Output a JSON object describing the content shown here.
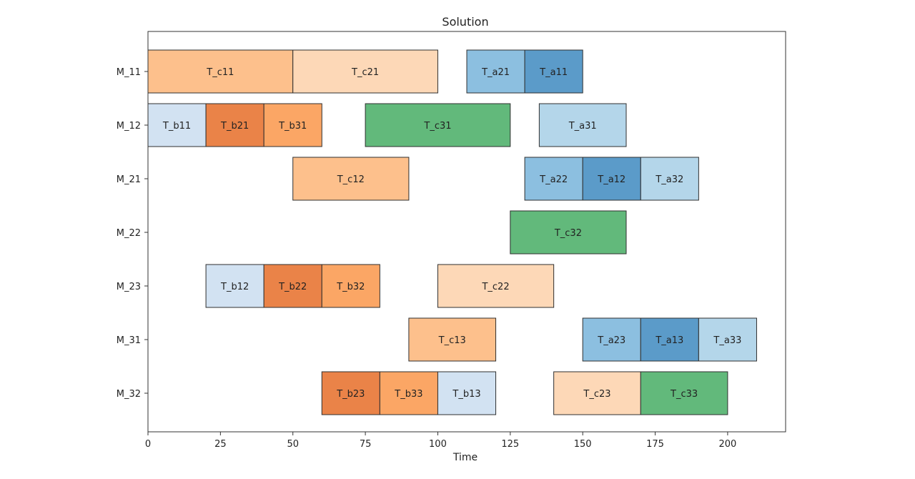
{
  "chart_data": {
    "type": "gantt",
    "title": "Solution",
    "xlabel": "Time",
    "ylabel": "",
    "xlim": [
      0,
      220
    ],
    "xticks": [
      0,
      25,
      50,
      75,
      100,
      125,
      150,
      175,
      200
    ],
    "machines": [
      "M_11",
      "M_12",
      "M_21",
      "M_22",
      "M_23",
      "M_31",
      "M_32"
    ],
    "colors": {
      "a1": "#5b9bc9",
      "a2": "#8cbfe0",
      "a3": "#b4d6ea",
      "b1": "#d2e2f2",
      "b2": "#ea8348",
      "b3": "#fba665",
      "c1": "#fdc08c",
      "c2": "#fdd8b7",
      "c3": "#62b97b"
    },
    "tasks": [
      {
        "label": "T_c11",
        "machine": "M_11",
        "start": 0,
        "end": 50,
        "color": "c1"
      },
      {
        "label": "T_c21",
        "machine": "M_11",
        "start": 50,
        "end": 100,
        "color": "c2"
      },
      {
        "label": "T_a21",
        "machine": "M_11",
        "start": 110,
        "end": 130,
        "color": "a2"
      },
      {
        "label": "T_a11",
        "machine": "M_11",
        "start": 130,
        "end": 150,
        "color": "a1"
      },
      {
        "label": "T_b11",
        "machine": "M_12",
        "start": 0,
        "end": 20,
        "color": "b1"
      },
      {
        "label": "T_b21",
        "machine": "M_12",
        "start": 20,
        "end": 40,
        "color": "b2"
      },
      {
        "label": "T_b31",
        "machine": "M_12",
        "start": 40,
        "end": 60,
        "color": "b3"
      },
      {
        "label": "T_c31",
        "machine": "M_12",
        "start": 75,
        "end": 125,
        "color": "c3"
      },
      {
        "label": "T_a31",
        "machine": "M_12",
        "start": 135,
        "end": 165,
        "color": "a3"
      },
      {
        "label": "T_c12",
        "machine": "M_21",
        "start": 50,
        "end": 90,
        "color": "c1"
      },
      {
        "label": "T_a22",
        "machine": "M_21",
        "start": 130,
        "end": 150,
        "color": "a2"
      },
      {
        "label": "T_a12",
        "machine": "M_21",
        "start": 150,
        "end": 170,
        "color": "a1"
      },
      {
        "label": "T_a32",
        "machine": "M_21",
        "start": 170,
        "end": 190,
        "color": "a3"
      },
      {
        "label": "T_c32",
        "machine": "M_22",
        "start": 125,
        "end": 165,
        "color": "c3"
      },
      {
        "label": "T_b12",
        "machine": "M_23",
        "start": 20,
        "end": 40,
        "color": "b1"
      },
      {
        "label": "T_b22",
        "machine": "M_23",
        "start": 40,
        "end": 60,
        "color": "b2"
      },
      {
        "label": "T_b32",
        "machine": "M_23",
        "start": 60,
        "end": 80,
        "color": "b3"
      },
      {
        "label": "T_c22",
        "machine": "M_23",
        "start": 100,
        "end": 140,
        "color": "c2"
      },
      {
        "label": "T_c13",
        "machine": "M_31",
        "start": 90,
        "end": 120,
        "color": "c1"
      },
      {
        "label": "T_a23",
        "machine": "M_31",
        "start": 150,
        "end": 170,
        "color": "a2"
      },
      {
        "label": "T_a13",
        "machine": "M_31",
        "start": 170,
        "end": 190,
        "color": "a1"
      },
      {
        "label": "T_a33",
        "machine": "M_31",
        "start": 190,
        "end": 210,
        "color": "a3"
      },
      {
        "label": "T_b23",
        "machine": "M_32",
        "start": 60,
        "end": 80,
        "color": "b2"
      },
      {
        "label": "T_b33",
        "machine": "M_32",
        "start": 80,
        "end": 100,
        "color": "b3"
      },
      {
        "label": "T_b13",
        "machine": "M_32",
        "start": 100,
        "end": 120,
        "color": "b1"
      },
      {
        "label": "T_c23",
        "machine": "M_32",
        "start": 140,
        "end": 170,
        "color": "c2"
      },
      {
        "label": "T_c33",
        "machine": "M_32",
        "start": 170,
        "end": 200,
        "color": "c3"
      }
    ]
  }
}
